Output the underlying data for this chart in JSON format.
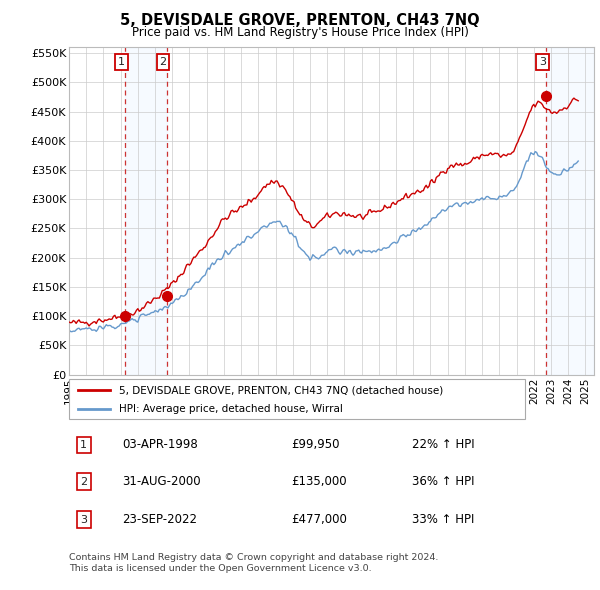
{
  "title": "5, DEVISDALE GROVE, PRENTON, CH43 7NQ",
  "subtitle": "Price paid vs. HM Land Registry's House Price Index (HPI)",
  "legend_line1": "5, DEVISDALE GROVE, PRENTON, CH43 7NQ (detached house)",
  "legend_line2": "HPI: Average price, detached house, Wirral",
  "footer1": "Contains HM Land Registry data © Crown copyright and database right 2024.",
  "footer2": "This data is licensed under the Open Government Licence v3.0.",
  "transactions": [
    {
      "num": 1,
      "date": "03-APR-1998",
      "price": 99950,
      "pct": "22% ↑ HPI",
      "x": 1998.25
    },
    {
      "num": 2,
      "date": "31-AUG-2000",
      "price": 135000,
      "pct": "36% ↑ HPI",
      "x": 2000.67
    },
    {
      "num": 3,
      "date": "23-SEP-2022",
      "price": 477000,
      "pct": "33% ↑ HPI",
      "x": 2022.72
    }
  ],
  "xmin": 1995.0,
  "xmax": 2025.5,
  "ymin": 0,
  "ymax": 560000,
  "yticks": [
    0,
    50000,
    100000,
    150000,
    200000,
    250000,
    300000,
    350000,
    400000,
    450000,
    500000,
    550000
  ],
  "ytick_labels": [
    "£0",
    "£50K",
    "£100K",
    "£150K",
    "£200K",
    "£250K",
    "£300K",
    "£350K",
    "£400K",
    "£450K",
    "£500K",
    "£550K"
  ],
  "xticks": [
    1995,
    1996,
    1997,
    1998,
    1999,
    2000,
    2001,
    2002,
    2003,
    2004,
    2005,
    2006,
    2007,
    2008,
    2009,
    2010,
    2011,
    2012,
    2013,
    2014,
    2015,
    2016,
    2017,
    2018,
    2019,
    2020,
    2021,
    2022,
    2023,
    2024,
    2025
  ],
  "red_line_color": "#cc0000",
  "blue_line_color": "#6699cc",
  "transaction_box_color": "#cc0000",
  "shade_color": "#ddeeff",
  "dashed_line_color": "#cc3333"
}
